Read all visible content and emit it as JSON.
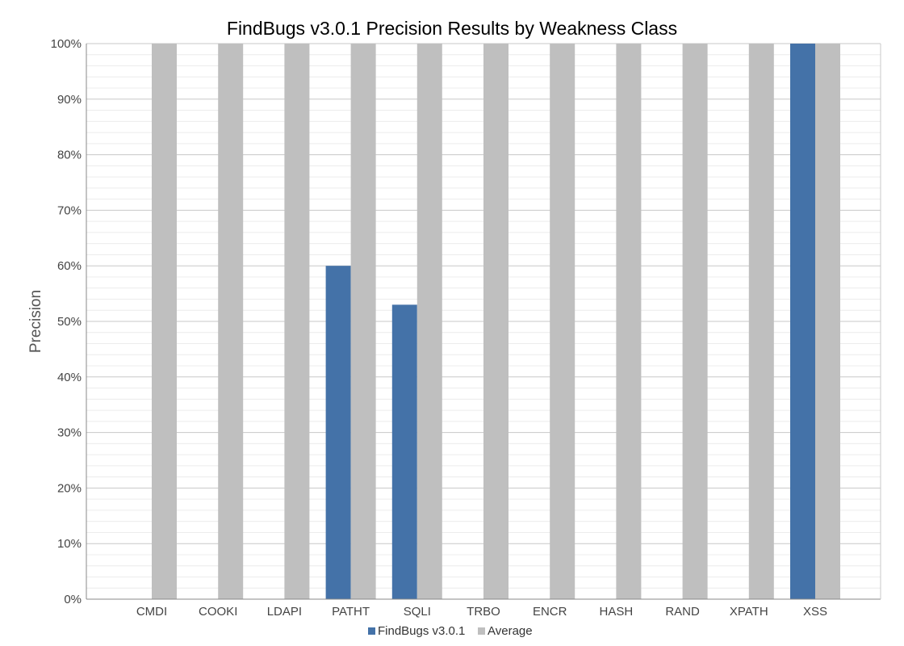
{
  "chart_data": {
    "type": "bar",
    "title": "FindBugs v3.0.1 Precision Results by Weakness Class",
    "xlabel": "",
    "ylabel": "Precision",
    "ylim": [
      0,
      100
    ],
    "y_ticks": [
      "0%",
      "10%",
      "20%",
      "30%",
      "40%",
      "50%",
      "60%",
      "70%",
      "80%",
      "90%",
      "100%"
    ],
    "categories": [
      "CMDI",
      "COOKI",
      "LDAPI",
      "PATHT",
      "SQLI",
      "TRBO",
      "ENCR",
      "HASH",
      "RAND",
      "XPATH",
      "XSS"
    ],
    "series": [
      {
        "name": "FindBugs v3.0.1",
        "color": "#4472a8",
        "values": [
          0,
          0,
          0,
          60,
          53,
          0,
          0,
          0,
          0,
          0,
          100
        ]
      },
      {
        "name": "Average",
        "color": "#bfbfbf",
        "values": [
          100,
          100,
          100,
          100,
          100,
          100,
          100,
          100,
          100,
          100,
          100
        ]
      }
    ],
    "grid": true,
    "minor_grid": true,
    "legend_position": "bottom"
  }
}
